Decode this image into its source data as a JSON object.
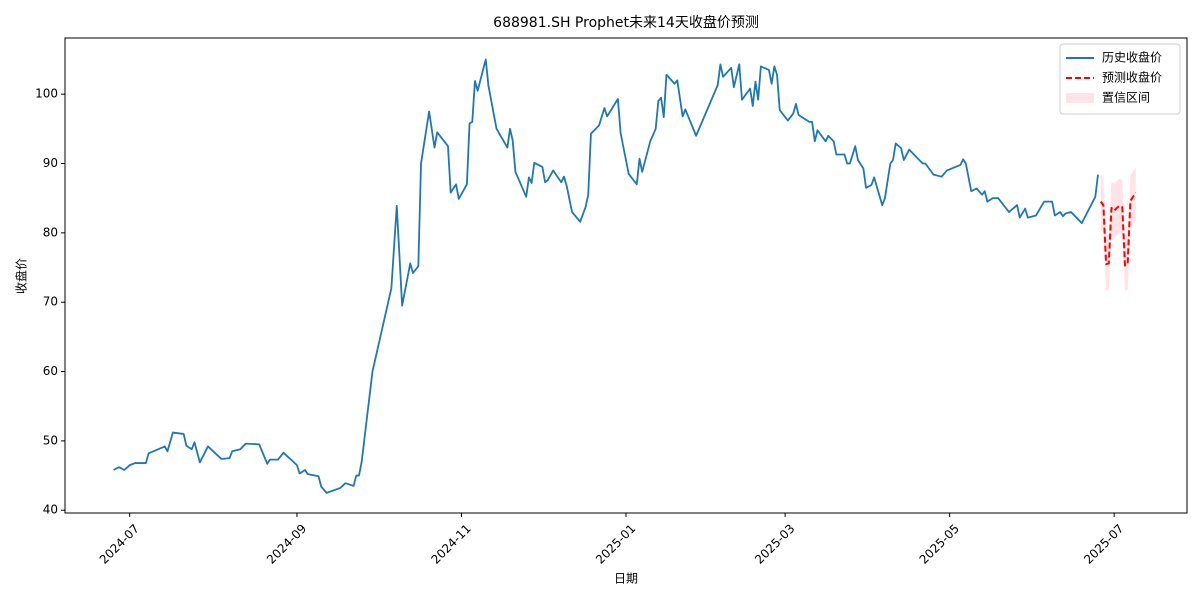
{
  "chart_data": {
    "type": "line",
    "title": "688981.SH Prophet未来14天收盘价预测",
    "x_label": "日期",
    "y_label": "收盘价",
    "legend": "upper right",
    "grid": false,
    "xlim": [
      "2024-06-07",
      "2025-07-28"
    ],
    "xticks": [
      {
        "value": "2024-07-01",
        "label": "2024-07"
      },
      {
        "value": "2024-09-01",
        "label": "2024-09"
      },
      {
        "value": "2024-11-01",
        "label": "2024-11"
      },
      {
        "value": "2025-01-01",
        "label": "2025-01"
      },
      {
        "value": "2025-03-01",
        "label": "2025-03"
      },
      {
        "value": "2025-05-01",
        "label": "2025-05"
      },
      {
        "value": "2025-07-01",
        "label": "2025-07"
      }
    ],
    "ylim": [
      39.6,
      108.1
    ],
    "yticks": [
      40,
      50,
      60,
      70,
      80,
      90,
      100
    ],
    "series": [
      {
        "name": "历史收盘价",
        "color": "#1f77b4",
        "dash": false,
        "x": [
          "2024-06-25",
          "2024-06-27",
          "2024-06-29",
          "2024-07-01",
          "2024-07-03",
          "2024-07-07",
          "2024-07-08",
          "2024-07-11",
          "2024-07-14",
          "2024-07-15",
          "2024-07-17",
          "2024-07-21",
          "2024-07-22",
          "2024-07-24",
          "2024-07-25",
          "2024-07-27",
          "2024-07-30",
          "2024-08-04",
          "2024-08-07",
          "2024-08-08",
          "2024-08-11",
          "2024-08-13",
          "2024-08-18",
          "2024-08-21",
          "2024-08-22",
          "2024-08-25",
          "2024-08-27",
          "2024-09-01",
          "2024-09-02",
          "2024-09-04",
          "2024-09-05",
          "2024-09-09",
          "2024-09-10",
          "2024-09-12",
          "2024-09-17",
          "2024-09-19",
          "2024-09-22",
          "2024-09-23",
          "2024-09-24",
          "2024-09-25",
          "2024-09-29",
          "2024-10-06",
          "2024-10-08",
          "2024-10-10",
          "2024-10-13",
          "2024-10-14",
          "2024-10-16",
          "2024-10-17",
          "2024-10-20",
          "2024-10-22",
          "2024-10-23",
          "2024-10-27",
          "2024-10-28",
          "2024-10-30",
          "2024-10-31",
          "2024-11-03",
          "2024-11-04",
          "2024-11-05",
          "2024-11-06",
          "2024-11-07",
          "2024-11-10",
          "2024-11-11",
          "2024-11-14",
          "2024-11-18",
          "2024-11-19",
          "2024-11-20",
          "2024-11-21",
          "2024-11-25",
          "2024-11-26",
          "2024-11-27",
          "2024-11-28",
          "2024-12-01",
          "2024-12-02",
          "2024-12-03",
          "2024-12-05",
          "2024-12-08",
          "2024-12-09",
          "2024-12-10",
          "2024-12-12",
          "2024-12-15",
          "2024-12-17",
          "2024-12-18",
          "2024-12-19",
          "2024-12-22",
          "2024-12-24",
          "2024-12-25",
          "2024-12-29",
          "2024-12-30",
          "2025-01-02",
          "2025-01-05",
          "2025-01-06",
          "2025-01-07",
          "2025-01-10",
          "2025-01-12",
          "2025-01-13",
          "2025-01-14",
          "2025-01-15",
          "2025-01-16",
          "2025-01-19",
          "2025-01-20",
          "2025-01-22",
          "2025-01-23",
          "2025-01-27",
          "2025-02-04",
          "2025-02-05",
          "2025-02-06",
          "2025-02-09",
          "2025-02-10",
          "2025-02-12",
          "2025-02-13",
          "2025-02-16",
          "2025-02-17",
          "2025-02-18",
          "2025-02-19",
          "2025-02-20",
          "2025-02-23",
          "2025-02-24",
          "2025-02-25",
          "2025-02-26",
          "2025-02-27",
          "2025-03-02",
          "2025-03-04",
          "2025-03-05",
          "2025-03-06",
          "2025-03-10",
          "2025-03-11",
          "2025-03-12",
          "2025-03-13",
          "2025-03-16",
          "2025-03-17",
          "2025-03-19",
          "2025-03-20",
          "2025-03-23",
          "2025-03-24",
          "2025-03-25",
          "2025-03-27",
          "2025-03-28",
          "2025-03-30",
          "2025-03-31",
          "2025-04-02",
          "2025-04-03",
          "2025-04-06",
          "2025-04-07",
          "2025-04-09",
          "2025-04-10",
          "2025-04-11",
          "2025-04-13",
          "2025-04-14",
          "2025-04-16",
          "2025-04-21",
          "2025-04-22",
          "2025-04-25",
          "2025-04-28",
          "2025-04-30",
          "2025-05-05",
          "2025-05-06",
          "2025-05-07",
          "2025-05-09",
          "2025-05-11",
          "2025-05-13",
          "2025-05-14",
          "2025-05-15",
          "2025-05-17",
          "2025-05-19",
          "2025-05-21",
          "2025-05-23",
          "2025-05-26",
          "2025-05-27",
          "2025-05-29",
          "2025-05-30",
          "2025-06-02",
          "2025-06-05",
          "2025-06-08",
          "2025-06-09",
          "2025-06-11",
          "2025-06-12",
          "2025-06-13",
          "2025-06-15",
          "2025-06-19",
          "2025-06-24",
          "2025-06-25"
        ],
        "values": [
          45.8,
          46.2,
          45.8,
          46.5,
          46.8,
          46.8,
          48.2,
          48.7,
          49.2,
          48.5,
          51.2,
          51.0,
          49.3,
          48.8,
          49.8,
          46.9,
          49.2,
          47.4,
          47.5,
          48.5,
          48.8,
          49.6,
          49.5,
          46.7,
          47.3,
          47.3,
          48.3,
          46.5,
          45.3,
          45.8,
          45.2,
          44.9,
          43.4,
          42.5,
          43.2,
          43.9,
          43.5,
          45.0,
          45.0,
          47.0,
          60.0,
          72.0,
          83.9,
          69.5,
          75.6,
          74.2,
          75.2,
          90.0,
          97.5,
          92.3,
          94.5,
          92.5,
          85.8,
          87.0,
          84.9,
          87.0,
          95.8,
          96.0,
          101.9,
          100.5,
          105.0,
          101.2,
          95.0,
          92.3,
          95.0,
          93.3,
          88.8,
          85.2,
          88.0,
          87.2,
          90.1,
          89.5,
          87.3,
          87.6,
          89.0,
          87.3,
          88.1,
          86.8,
          83.0,
          81.6,
          83.7,
          85.5,
          94.3,
          95.5,
          98.0,
          96.8,
          99.3,
          94.4,
          88.5,
          87.0,
          90.7,
          88.8,
          93.2,
          95.0,
          99.0,
          99.5,
          96.7,
          102.8,
          101.5,
          102.0,
          96.8,
          97.8,
          94.0,
          101.3,
          104.3,
          102.5,
          103.8,
          101.0,
          104.3,
          99.2,
          100.8,
          98.3,
          101.8,
          99.2,
          104.0,
          103.5,
          101.5,
          104.0,
          102.8,
          97.7,
          96.2,
          97.2,
          98.6,
          97.0,
          96.0,
          96.0,
          93.2,
          94.8,
          93.2,
          94.0,
          93.2,
          91.3,
          91.3,
          90.0,
          90.0,
          92.5,
          90.5,
          89.3,
          86.5,
          86.9,
          88.0,
          84.0,
          85.0,
          90.0,
          90.5,
          92.9,
          92.2,
          90.5,
          92.0,
          90.0,
          90.0,
          88.4,
          88.1,
          89.0,
          89.8,
          90.6,
          90.0,
          86.0,
          86.4,
          85.5,
          86.0,
          84.5,
          85.0,
          85.0,
          84.0,
          83.0,
          84.0,
          82.2,
          83.5,
          82.2,
          82.5,
          84.5,
          84.5,
          82.5,
          83.0,
          82.4,
          82.8,
          83.0,
          81.4,
          85.2,
          88.4
        ]
      },
      {
        "name": "预测收盘价",
        "color": "#ff0000",
        "dash": true,
        "x": [
          "2025-06-26",
          "2025-06-27",
          "2025-06-28",
          "2025-06-29",
          "2025-06-30",
          "2025-07-01",
          "2025-07-02",
          "2025-07-03",
          "2025-07-04",
          "2025-07-05",
          "2025-07-06",
          "2025-07-07",
          "2025-07-08",
          "2025-07-09"
        ],
        "values": [
          84.5,
          84.0,
          75.5,
          75.6,
          83.6,
          83.2,
          83.6,
          83.9,
          83.7,
          75.3,
          75.5,
          84.6,
          85.2,
          85.8
        ]
      }
    ],
    "interval": {
      "name": "置信区间",
      "color": "#ffc0cb",
      "x": [
        "2025-06-26",
        "2025-06-27",
        "2025-06-28",
        "2025-06-29",
        "2025-06-30",
        "2025-07-01",
        "2025-07-02",
        "2025-07-03",
        "2025-07-04",
        "2025-07-05",
        "2025-07-06",
        "2025-07-07",
        "2025-07-08",
        "2025-07-09"
      ],
      "lower": [
        80.5,
        80.2,
        71.6,
        71.8,
        79.6,
        79.3,
        79.6,
        80.0,
        79.8,
        71.6,
        71.8,
        80.8,
        81.3,
        81.8
      ],
      "upper": [
        88.3,
        88.1,
        79.6,
        79.7,
        87.4,
        87.1,
        87.5,
        87.8,
        87.6,
        79.2,
        79.4,
        88.3,
        88.9,
        89.4
      ]
    }
  }
}
